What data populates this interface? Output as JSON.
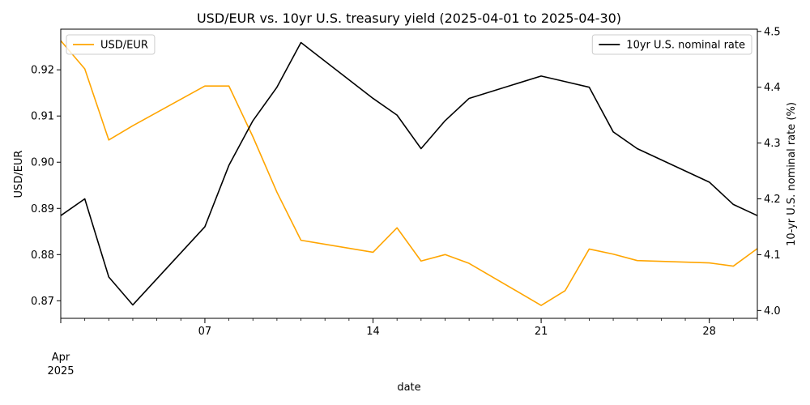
{
  "chart_data": {
    "type": "line",
    "title": "USD/EUR vs. 10yr U.S. treasury yield (2025-04-01 to 2025-04-30)",
    "xlabel": "date",
    "x_range": [
      "2025-04-01",
      "2025-04-30"
    ],
    "x_ticks": [
      {
        "date": "2025-04-01",
        "label": "Apr",
        "label2": "2025"
      },
      {
        "date": "2025-04-07",
        "label": "07"
      },
      {
        "date": "2025-04-14",
        "label": "14"
      },
      {
        "date": "2025-04-21",
        "label": "21"
      },
      {
        "date": "2025-04-28",
        "label": "28"
      }
    ],
    "x": [
      "2025-04-01",
      "2025-04-02",
      "2025-04-03",
      "2025-04-04",
      "2025-04-07",
      "2025-04-08",
      "2025-04-09",
      "2025-04-10",
      "2025-04-11",
      "2025-04-14",
      "2025-04-15",
      "2025-04-16",
      "2025-04-17",
      "2025-04-18",
      "2025-04-21",
      "2025-04-22",
      "2025-04-23",
      "2025-04-24",
      "2025-04-25",
      "2025-04-28",
      "2025-04-29",
      "2025-04-30"
    ],
    "left_axis": {
      "label": "USD/EUR",
      "ylim": [
        0.8662,
        0.9288
      ],
      "ticks": [
        0.87,
        0.88,
        0.89,
        0.9,
        0.91,
        0.92
      ],
      "tick_labels": [
        "0.87",
        "0.88",
        "0.89",
        "0.90",
        "0.91",
        "0.92"
      ]
    },
    "right_axis": {
      "label": "10-yr U.S. nominal rate (%)",
      "ylim": [
        3.986,
        4.504
      ],
      "ticks": [
        4.0,
        4.1,
        4.2,
        4.3,
        4.4,
        4.5
      ],
      "tick_labels": [
        "4.0",
        "4.1",
        "4.2",
        "4.3",
        "4.4",
        "4.5"
      ]
    },
    "series": [
      {
        "name": "USD/EUR",
        "axis": "left",
        "color": "#ffa500",
        "legend_position": "upper left",
        "values": [
          0.9263,
          0.9202,
          0.9048,
          0.9079,
          0.9165,
          0.9165,
          0.9055,
          0.8935,
          0.8831,
          0.8805,
          0.8858,
          0.8786,
          0.88,
          0.8781,
          0.869,
          0.8722,
          0.8812,
          0.8801,
          0.8787,
          0.8782,
          0.8775,
          0.8813
        ]
      },
      {
        "name": "10yr U.S. nominal rate",
        "axis": "right",
        "color": "#000000",
        "legend_position": "upper right",
        "values": [
          4.17,
          4.2,
          4.06,
          4.01,
          4.15,
          4.26,
          4.34,
          4.4,
          4.48,
          4.38,
          4.35,
          4.29,
          4.34,
          4.38,
          4.42,
          4.41,
          4.4,
          4.32,
          4.29,
          4.23,
          4.19,
          4.17
        ]
      }
    ]
  }
}
